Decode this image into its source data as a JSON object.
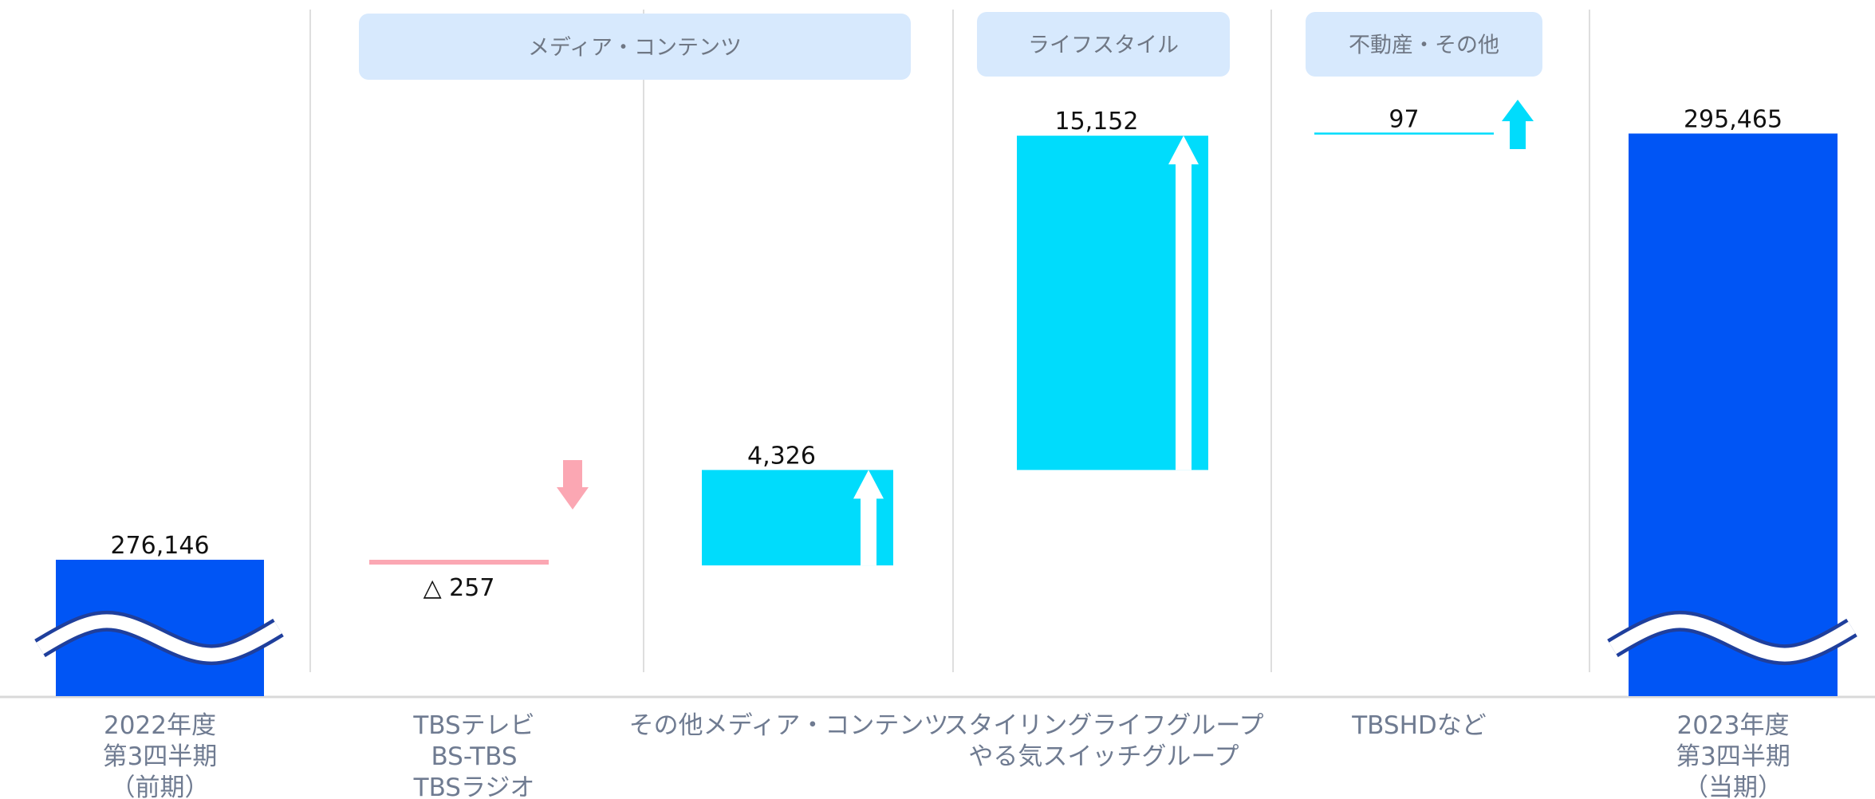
{
  "chart_data": {
    "type": "bar",
    "subtype": "waterfall",
    "title": "",
    "xlabel": "",
    "ylabel": "",
    "axis_break": true,
    "ylim": [
      270000,
      297000
    ],
    "groups": [
      {
        "label": "メディア・コンテンツ",
        "categories": [
          1,
          2
        ]
      },
      {
        "label": "ライフスタイル",
        "categories": [
          3
        ]
      },
      {
        "label": "不動産・その他",
        "categories": [
          4
        ]
      }
    ],
    "categories": [
      {
        "lines": [
          "2022年度",
          "第3四半期",
          "（前期）"
        ],
        "kind": "total",
        "value": 276146,
        "label": "276,146"
      },
      {
        "lines": [
          "TBSテレビ",
          "BS-TBS",
          "TBSラジオ"
        ],
        "kind": "decrease",
        "value": -257,
        "label": "△ 257"
      },
      {
        "lines": [
          "その他メディア・コンテンツ"
        ],
        "kind": "increase",
        "value": 4326,
        "label": "4,326"
      },
      {
        "lines": [
          "スタイリングライフグループ",
          "やる気スイッチグループ"
        ],
        "kind": "increase",
        "value": 15152,
        "label": "15,152"
      },
      {
        "lines": [
          "TBSHDなど"
        ],
        "kind": "increase",
        "value": 97,
        "label": "97"
      },
      {
        "lines": [
          "2023年度",
          "第3四半期",
          "（当期）"
        ],
        "kind": "total",
        "value": 295465,
        "label": "295,465"
      }
    ],
    "colors": {
      "total": "#0055f5",
      "increase": "#00dcfc",
      "decrease": "#fba7b3",
      "group_header": "#d7e9fd",
      "divider": "#d0d0d0"
    },
    "arrow_icons": [
      "arrow-down-icon",
      "arrow-up-icon",
      "arrow-up-icon",
      "arrow-up-icon",
      "arrow-up-icon"
    ]
  }
}
